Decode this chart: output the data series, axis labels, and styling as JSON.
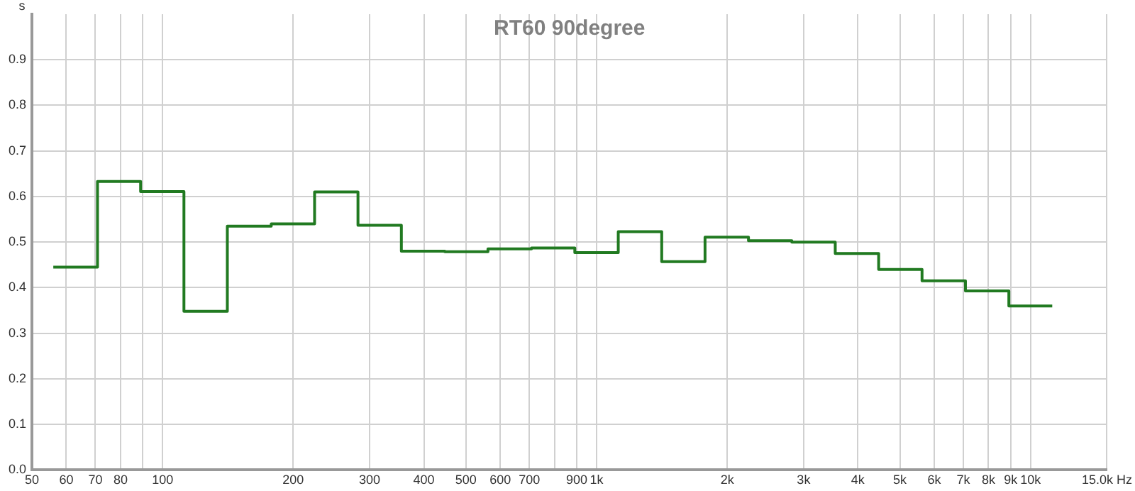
{
  "chart_data": {
    "type": "step",
    "title": "RT60 90degree",
    "ylabel": "s",
    "x": [
      56,
      70.8,
      89,
      112,
      141,
      178,
      224,
      282,
      355,
      447,
      562,
      708,
      891,
      1122,
      1413,
      1778,
      2239,
      2818,
      3548,
      4467,
      5623,
      7079,
      8913,
      11220
    ],
    "series": [
      {
        "color": "#217a21",
        "values": [
          0.445,
          0.633,
          0.611,
          0.348,
          0.535,
          0.54,
          0.61,
          0.537,
          0.48,
          0.479,
          0.485,
          0.487,
          0.477,
          0.523,
          0.457,
          0.511,
          0.503,
          0.5,
          0.475,
          0.44,
          0.415,
          0.393,
          0.36,
          0.36
        ]
      }
    ],
    "log": "x",
    "grid": true,
    "legend": false,
    "xlim": [
      50,
      15000
    ],
    "xticks": [
      50,
      60,
      70,
      80,
      {
        "value": 90,
        "label": null
      },
      100,
      200,
      300,
      400,
      500,
      600,
      700,
      {
        "value": 800,
        "label": null
      },
      900,
      {
        "value": 1000,
        "label": "1k"
      },
      {
        "value": 2000,
        "label": "2k"
      },
      {
        "value": 3000,
        "label": "3k"
      },
      {
        "value": 4000,
        "label": "4k"
      },
      {
        "value": 5000,
        "label": "5k"
      },
      {
        "value": 6000,
        "label": "6k"
      },
      {
        "value": 7000,
        "label": "7k"
      },
      {
        "value": 8000,
        "label": "8k"
      },
      {
        "value": 9000,
        "label": "9k"
      },
      {
        "value": 10000,
        "label": "10k"
      },
      {
        "value": 15000,
        "label": "15.0k Hz"
      }
    ],
    "ylim": [
      0,
      1
    ],
    "yticks": [
      {
        "value": 0,
        "label": "0.0"
      },
      0.1,
      0.2,
      0.3,
      0.4,
      0.5,
      0.6,
      0.7,
      0.8,
      0.9
    ]
  }
}
